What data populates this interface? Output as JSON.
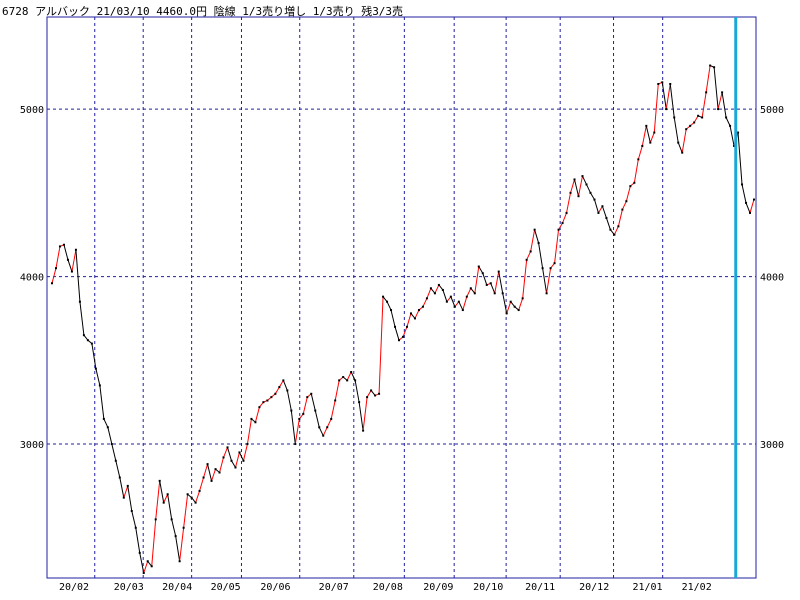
{
  "header": {
    "text": "6728 アルバック 21/03/10 4460.0円 陰線 1/3売り増し 1/3売り 残3/3売"
  },
  "chart_data": {
    "type": "line",
    "ylim": [
      2200,
      5550
    ],
    "xlim": [
      0,
      1.0
    ],
    "grid": true,
    "y_ticks": [
      3000,
      4000,
      5000
    ],
    "x_ticks": [
      {
        "label": "20/02",
        "x": 0.0
      },
      {
        "label": "20/03",
        "x": 0.078
      },
      {
        "label": "20/04",
        "x": 0.147
      },
      {
        "label": "20/05",
        "x": 0.216
      },
      {
        "label": "20/06",
        "x": 0.287
      },
      {
        "label": "20/07",
        "x": 0.37
      },
      {
        "label": "20/08",
        "x": 0.447
      },
      {
        "label": "20/09",
        "x": 0.519
      },
      {
        "label": "20/10",
        "x": 0.59
      },
      {
        "label": "20/11",
        "x": 0.664
      },
      {
        "label": "20/12",
        "x": 0.741
      },
      {
        "label": "21/01",
        "x": 0.817
      },
      {
        "label": "21/02",
        "x": 0.887
      }
    ],
    "marker_x": 0.974,
    "colors": {
      "up": "#ff0000",
      "down": "#000000",
      "grid": "#2020a0",
      "marker": "#18a8d8",
      "frame": "#2020a0"
    },
    "prices": [
      3960,
      4050,
      4180,
      4190,
      4100,
      4030,
      4160,
      3850,
      3650,
      3620,
      3600,
      3450,
      3350,
      3150,
      3100,
      3000,
      2900,
      2800,
      2680,
      2750,
      2600,
      2500,
      2350,
      2230,
      2300,
      2270,
      2550,
      2780,
      2650,
      2700,
      2550,
      2450,
      2300,
      2500,
      2700,
      2680,
      2650,
      2720,
      2800,
      2880,
      2780,
      2850,
      2830,
      2920,
      2980,
      2900,
      2860,
      2950,
      2900,
      3000,
      3150,
      3130,
      3220,
      3250,
      3260,
      3280,
      3300,
      3340,
      3380,
      3320,
      3200,
      3000,
      3150,
      3180,
      3280,
      3300,
      3200,
      3100,
      3050,
      3100,
      3150,
      3260,
      3380,
      3400,
      3380,
      3430,
      3380,
      3250,
      3080,
      3280,
      3320,
      3290,
      3300,
      3880,
      3850,
      3800,
      3700,
      3620,
      3640,
      3700,
      3780,
      3750,
      3800,
      3820,
      3870,
      3930,
      3900,
      3950,
      3920,
      3850,
      3880,
      3820,
      3850,
      3800,
      3880,
      3930,
      3900,
      4060,
      4020,
      3950,
      3960,
      3900,
      4030,
      3900,
      3780,
      3850,
      3820,
      3800,
      3870,
      4100,
      4150,
      4280,
      4200,
      4050,
      3900,
      4050,
      4080,
      4280,
      4320,
      4380,
      4500,
      4580,
      4480,
      4600,
      4550,
      4500,
      4460,
      4380,
      4420,
      4350,
      4280,
      4250,
      4300,
      4400,
      4450,
      4540,
      4560,
      4700,
      4780,
      4900,
      4800,
      4860,
      5150,
      5160,
      5000,
      5150,
      4950,
      4800,
      4740,
      4880,
      4900,
      4920,
      4960,
      4950,
      5100,
      5260,
      5250,
      5000,
      5100,
      4950,
      4900,
      4780,
      4860,
      4550,
      4440,
      4380,
      4460
    ]
  }
}
